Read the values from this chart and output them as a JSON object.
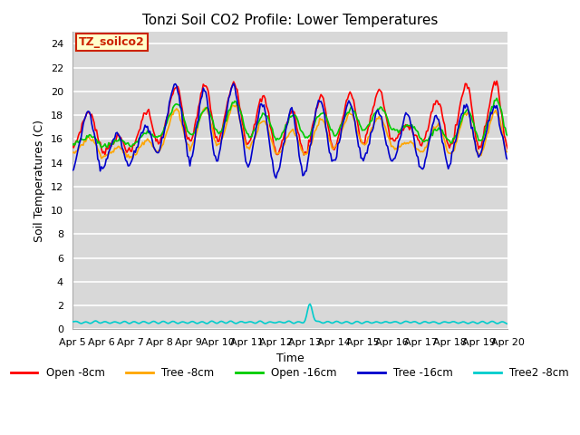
{
  "title": "Tonzi Soil CO2 Profile: Lower Temperatures",
  "xlabel": "Time",
  "ylabel": "Soil Temperatures (C)",
  "ylim": [
    0,
    25
  ],
  "yticks": [
    0,
    2,
    4,
    6,
    8,
    10,
    12,
    14,
    16,
    18,
    20,
    22,
    24
  ],
  "bg_color": "#d8d8d8",
  "colors": {
    "open_8cm": "#ff0000",
    "tree_8cm": "#ffa500",
    "open_16cm": "#00cc00",
    "tree_16cm": "#0000cc",
    "tree2_8cm": "#00cccc"
  },
  "legend_labels": [
    "Open -8cm",
    "Tree -8cm",
    "Open -16cm",
    "Tree -16cm",
    "Tree2 -8cm"
  ],
  "xtick_labels": [
    "Apr 5",
    "Apr 6",
    "Apr 7",
    "Apr 8",
    "Apr 9",
    "Apr 10",
    "Apr 11",
    "Apr 12",
    "Apr 13",
    "Apr 14",
    "Apr 15",
    "Apr 16",
    "Apr 17",
    "Apr 18",
    "Apr 19",
    "Apr 20"
  ],
  "annotation_text": "TZ_soilco2",
  "annotation_color": "#cc2200",
  "annotation_bg": "#ffffcc"
}
